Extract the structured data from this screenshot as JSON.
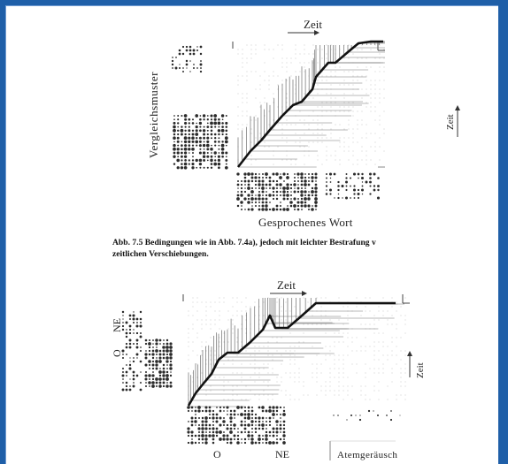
{
  "top_figure": {
    "time_label_horizontal": "Zeit",
    "time_label_vertical": "Zeit",
    "y_axis_label": "Vergleichsmuster",
    "x_axis_label": "Gesprochenes Wort",
    "caption_line1": "Abb. 7.5  Bedingungen wie in Abb. 7.4a), jedoch mit leichter Bestrafung v",
    "caption_line2": "zeitlichen Verschiebungen."
  },
  "bottom_figure": {
    "time_label_horizontal": "Zeit",
    "time_label_vertical": "Zeit",
    "y_labels": [
      "O",
      "NE"
    ],
    "x_labels": [
      "O",
      "NE"
    ],
    "noise_label": "Atemgeräusch"
  },
  "colors": {
    "background": "#1f5fa8",
    "paper": "#ffffff",
    "ink": "#222222"
  }
}
